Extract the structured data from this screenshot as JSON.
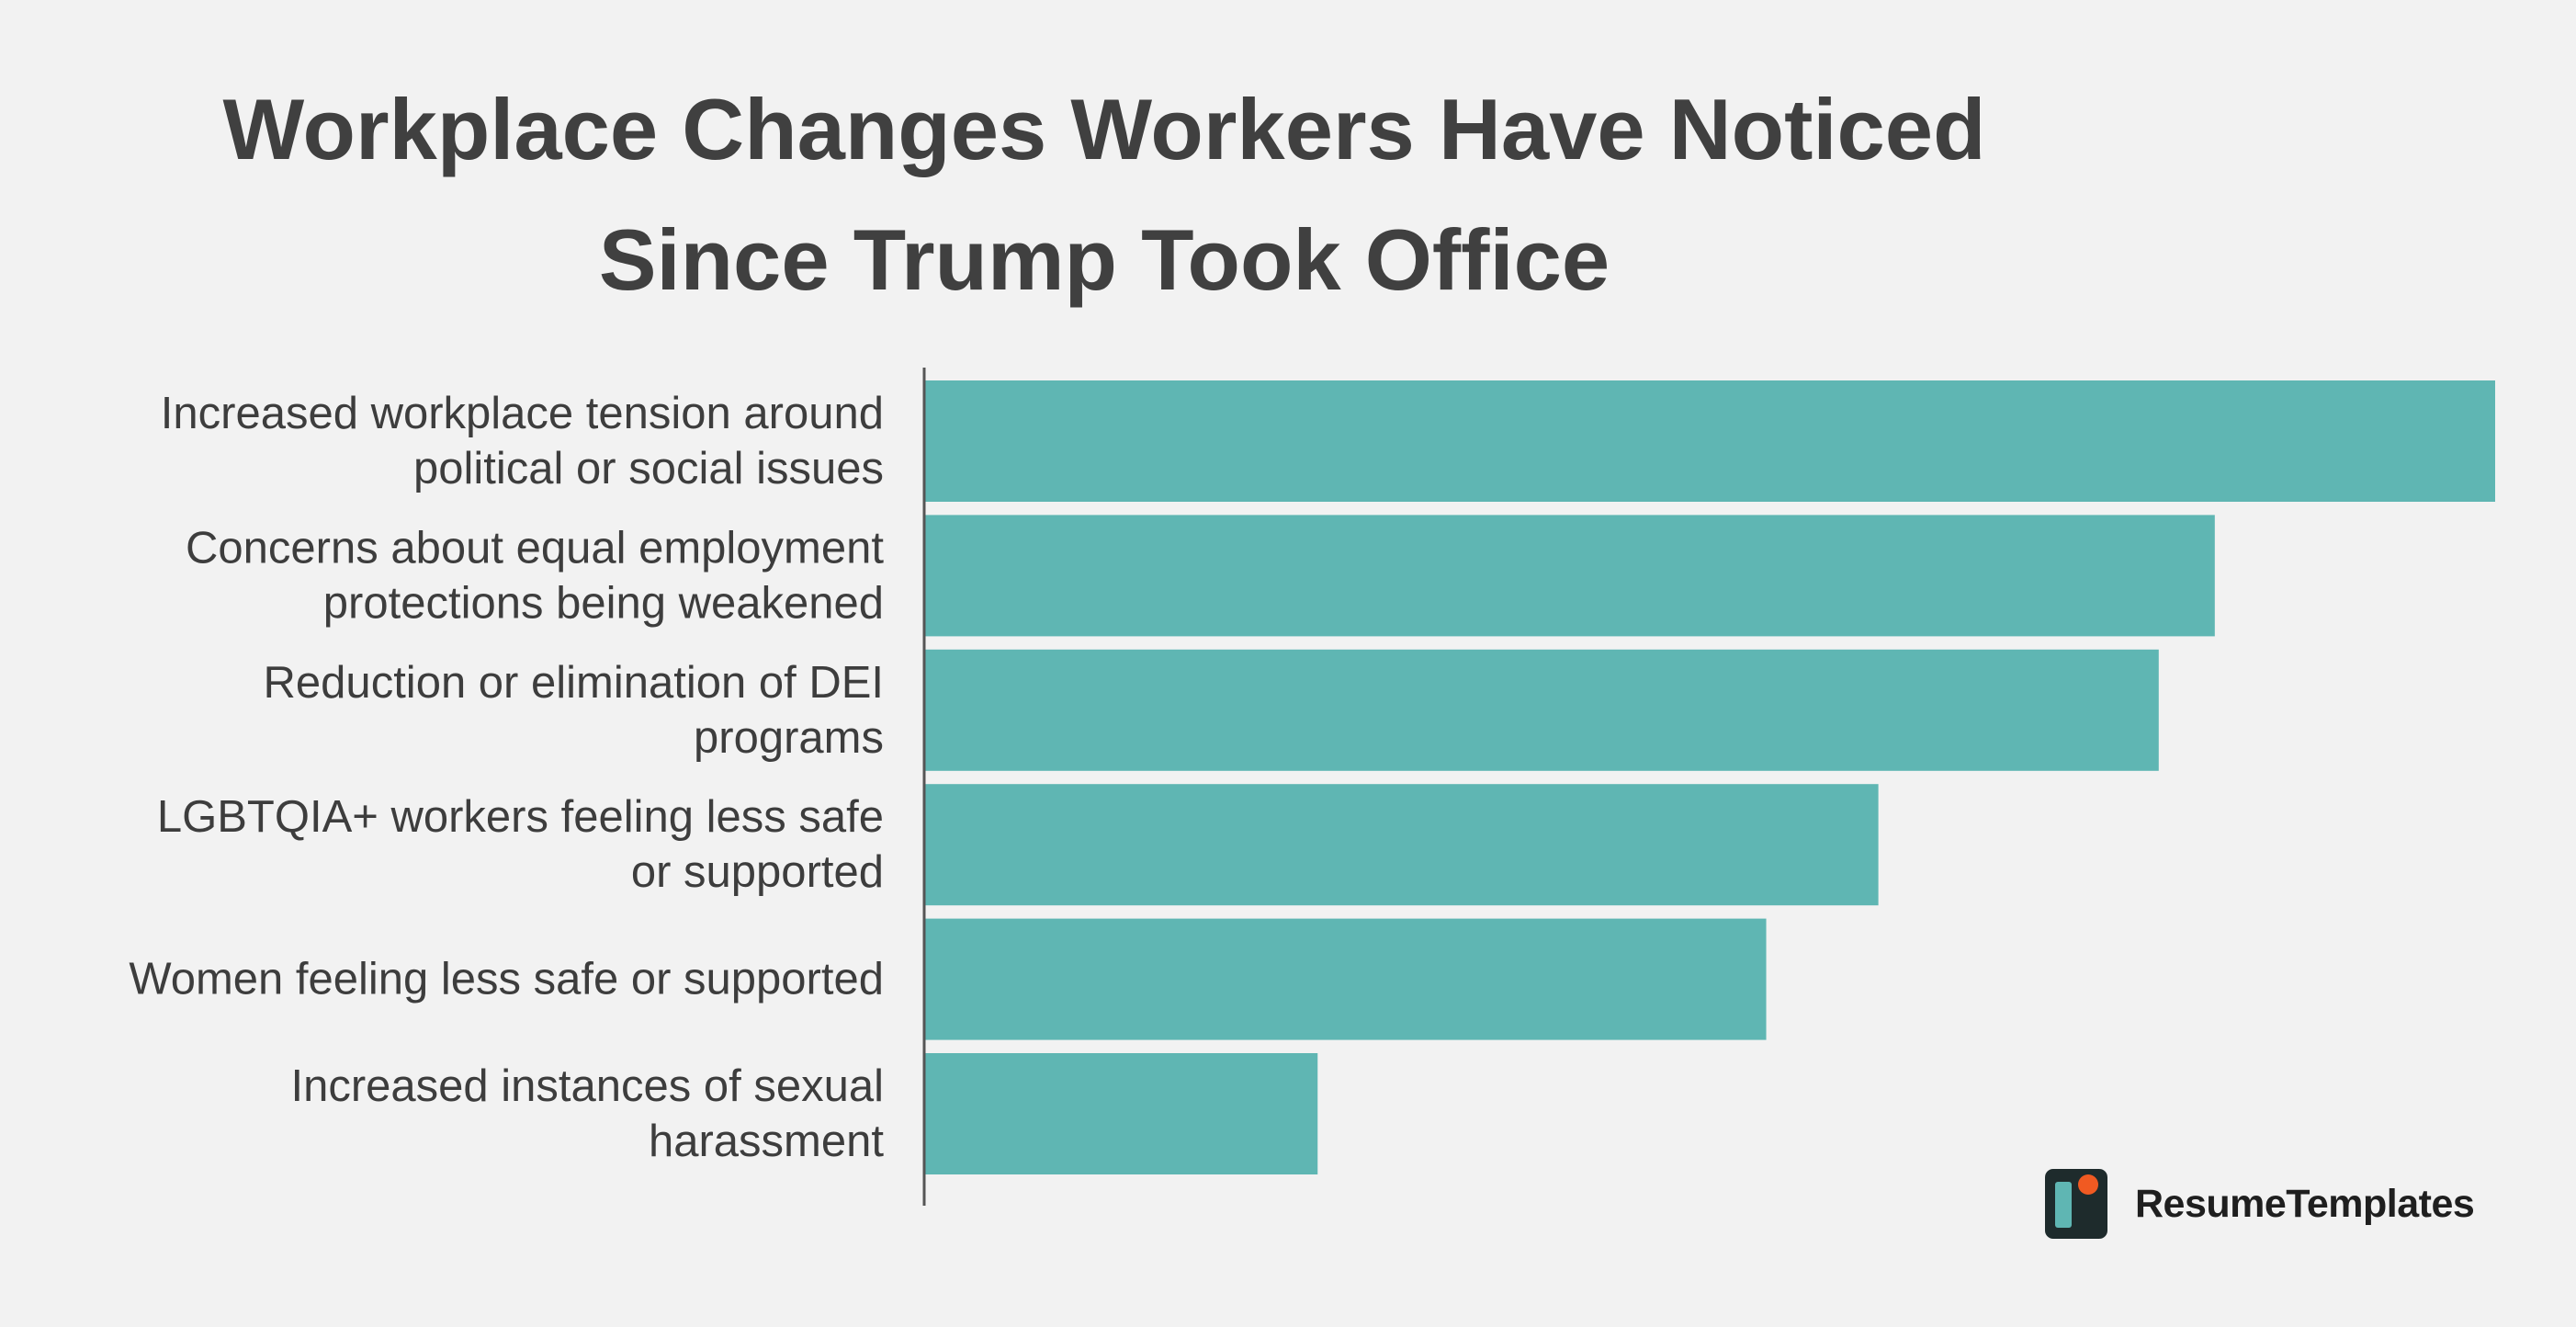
{
  "chart_data": {
    "type": "bar",
    "orientation": "horizontal",
    "title": "Workplace Changes Workers Have Noticed Since Trump Took Office",
    "title_lines": [
      "Workplace Changes Workers Have Noticed",
      "Since Trump Took Office"
    ],
    "categories": [
      [
        "Increased workplace tension around",
        "political or social issues"
      ],
      [
        "Concerns about equal employment",
        "protections being weakened"
      ],
      [
        "Reduction or elimination of DEI",
        "programs"
      ],
      [
        "LGBTQIA+ workers feeling less safe",
        "or supported"
      ],
      [
        "Women feeling less safe or supported"
      ],
      [
        "Increased instances of sexual",
        "harassment"
      ]
    ],
    "values": [
      56,
      46,
      44,
      34,
      30,
      14
    ],
    "xlim": [
      0,
      56
    ],
    "xlabel": "",
    "ylabel": "",
    "grid": false,
    "bar_color": "#5fb6b3",
    "axis_color": "#555555"
  },
  "branding": {
    "name": "ResumeTemplates",
    "icon": "resume-templates-logo-icon",
    "colors": {
      "dark": "#1e2b2c",
      "teal": "#5fb6b3",
      "orange": "#f05a22"
    }
  }
}
